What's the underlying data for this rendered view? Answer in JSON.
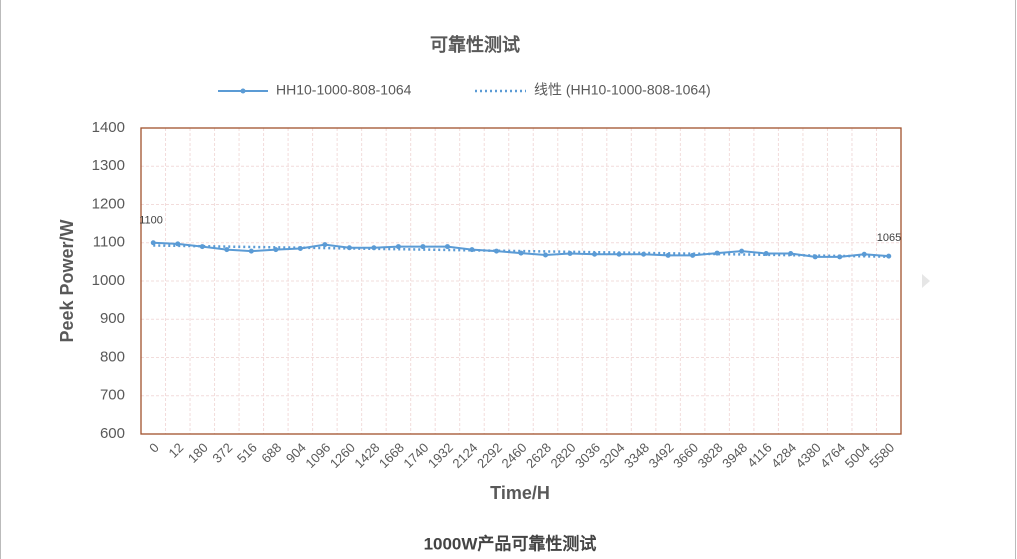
{
  "chart_data": {
    "type": "line",
    "title": "可靠性测试",
    "caption": "1000W产品可靠性测试",
    "x_label": "Time/H",
    "y_label": "Peek Power/W",
    "categories": [
      "0",
      "12",
      "180",
      "372",
      "516",
      "688",
      "904",
      "1096",
      "1260",
      "1428",
      "1668",
      "1740",
      "1932",
      "2124",
      "2292",
      "2460",
      "2628",
      "2820",
      "3036",
      "3204",
      "3348",
      "3492",
      "3660",
      "3828",
      "3948",
      "4116",
      "4284",
      "4380",
      "4764",
      "5004",
      "5580"
    ],
    "series": [
      {
        "name": "HH10-1000-808-1064",
        "color": "#5b9bd5",
        "values": [
          1100,
          1097,
          1090,
          1082,
          1078,
          1082,
          1085,
          1095,
          1087,
          1087,
          1090,
          1090,
          1090,
          1082,
          1078,
          1073,
          1068,
          1072,
          1070,
          1070,
          1070,
          1067,
          1067,
          1073,
          1078,
          1072,
          1072,
          1063,
          1063,
          1070,
          1065
        ]
      }
    ],
    "trendline": {
      "name": "线性 (HH10-1000-808-1064)",
      "color": "#5b9bd5"
    },
    "labeled_points": [
      0,
      30
    ],
    "ylim": [
      600,
      1400
    ],
    "yticks": [
      600,
      700,
      800,
      900,
      1000,
      1100,
      1200,
      1300,
      1400
    ],
    "grid": true
  }
}
